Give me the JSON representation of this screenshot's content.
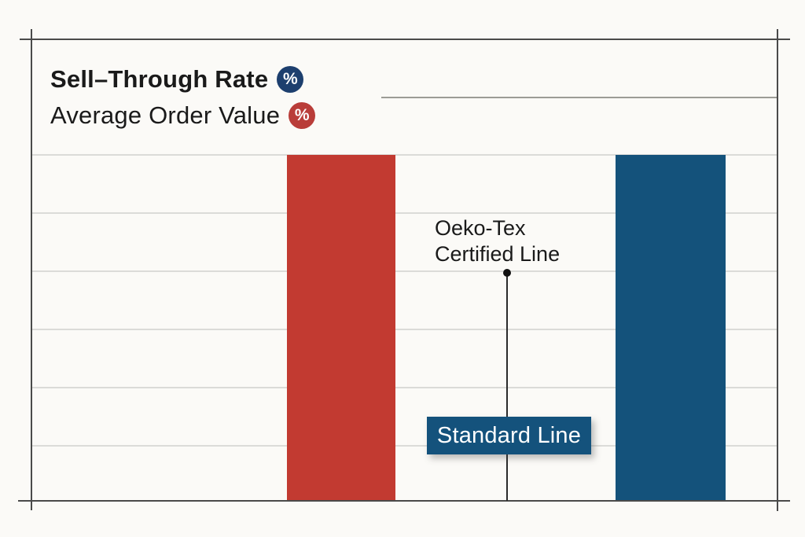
{
  "header": {
    "title_line1": "Sell–Through Rate",
    "title_line2": "Average Order Value",
    "badge_blue": "%",
    "badge_red": "%"
  },
  "annotation": {
    "line1": "Oeko-Tex",
    "line2": "Certified Line"
  },
  "callout": {
    "label": "Standard Line"
  },
  "colors": {
    "page-bg": "#fbfaf7",
    "text": "#1a1a1a",
    "axis": "#4a4a4a",
    "grid": "#dbdbd8",
    "grid-dark": "#9c9c96",
    "bar-red": "#c23a31",
    "bar-blue": "#14527b",
    "badge-blue": "#1d3f6e",
    "badge-red": "#b93d39",
    "callout-bg": "#14527c"
  },
  "chart_data": {
    "type": "bar",
    "title": "Sell–Through Rate % vs Average Order Value %",
    "categories": [
      "Standard Line",
      "Oeko-Tex Certified Line"
    ],
    "bars": [
      {
        "label": "Average Order Value",
        "color": "#c23a31",
        "value_pct": 75
      },
      {
        "label": "Sell-Through Rate",
        "color": "#14527b",
        "value_pct": 75
      }
    ],
    "xlabel": "",
    "ylabel": "",
    "ylim": [
      0,
      100
    ],
    "grid": true,
    "legend_position": "top-left",
    "annotations": [
      "Oeko-Tex Certified Line",
      "Standard Line"
    ],
    "value_note": "bars unlabeled; heights estimated from gridlines"
  }
}
